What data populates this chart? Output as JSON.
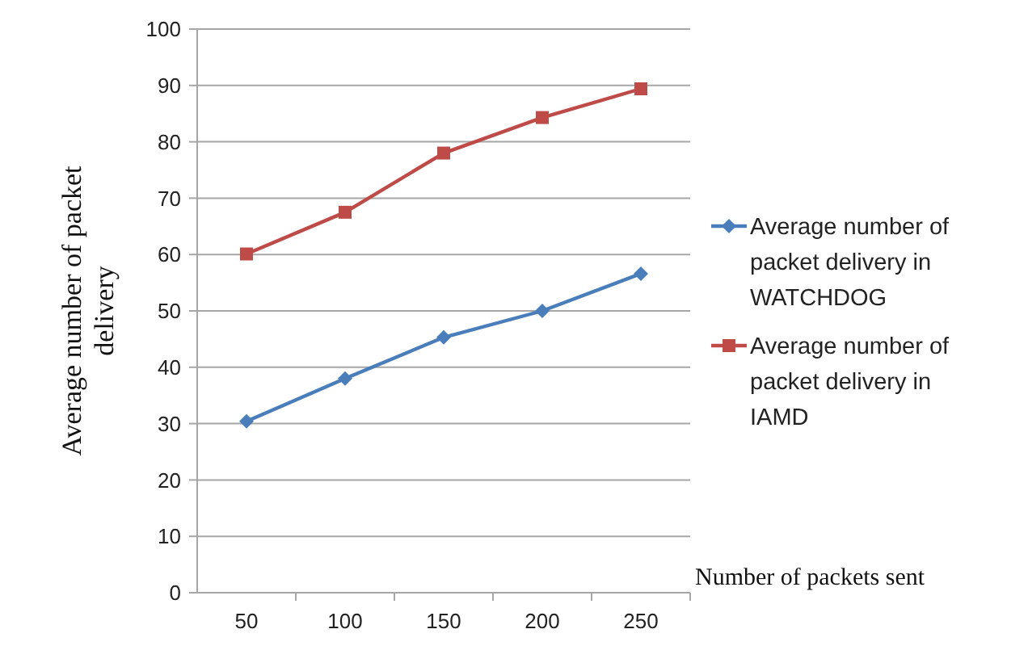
{
  "chart_data": {
    "type": "line",
    "xlabel": "Number of packets sent",
    "ylabel": "Average number of packet delivery",
    "categories": [
      "50",
      "100",
      "150",
      "200",
      "250"
    ],
    "series": [
      {
        "name": "Average number of packet delivery in WATCHDOG",
        "color": "#4a7ebb",
        "values": [
          30.4,
          38,
          45.3,
          50,
          56.6
        ],
        "marker": "diamond"
      },
      {
        "name": "Average number of packet delivery in IAMD",
        "color": "#be4b48",
        "values": [
          60.1,
          67.5,
          78,
          84.3,
          89.4
        ],
        "marker": "square"
      }
    ],
    "ylim": [
      0,
      100
    ],
    "yticks": [
      0,
      10,
      20,
      30,
      40,
      50,
      60,
      70,
      80,
      90,
      100
    ],
    "grid": "y",
    "legend": "right",
    "line_style": "solid"
  }
}
